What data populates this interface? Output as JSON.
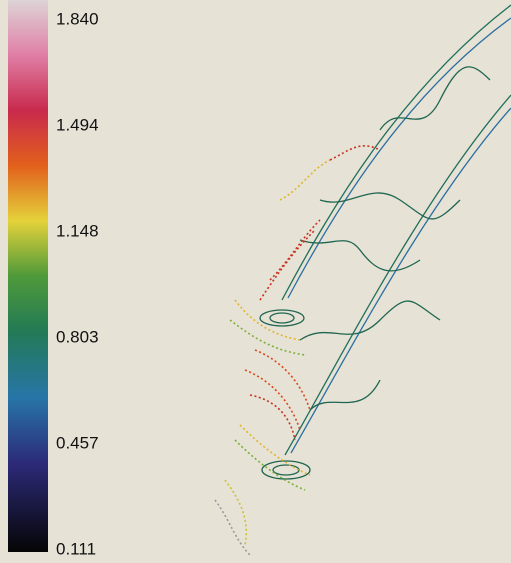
{
  "colorbar": {
    "labels": [
      "1.840",
      "1.494",
      "1.148",
      "0.803",
      "0.457",
      "0.111"
    ]
  }
}
